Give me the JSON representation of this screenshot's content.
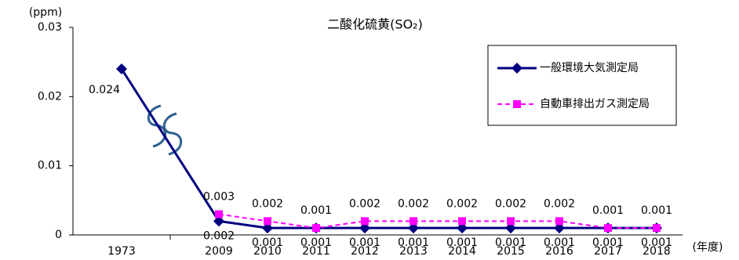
{
  "chart_data": {
    "type": "line",
    "title": "二酸化硫黄(SO₂)",
    "y_unit": "(ppm)",
    "x_unit": "(年度)",
    "categories": [
      "1973",
      "2009",
      "2010",
      "2011",
      "2012",
      "2013",
      "2014",
      "2015",
      "2016",
      "2017",
      "2018"
    ],
    "series": [
      {
        "name": "一般環境大気測定局",
        "color": "#000080",
        "marker": "diamond",
        "dash": false,
        "values": [
          0.024,
          0.002,
          0.001,
          0.001,
          0.001,
          0.001,
          0.001,
          0.001,
          0.001,
          0.001,
          0.001
        ]
      },
      {
        "name": "自動車排出ガス測定局",
        "color": "#ff00ff",
        "marker": "square",
        "dash": true,
        "values": [
          null,
          0.003,
          0.002,
          0.001,
          0.002,
          0.002,
          0.002,
          0.002,
          0.002,
          0.001,
          0.001
        ]
      }
    ],
    "ylim": [
      0,
      0.03
    ],
    "yticks": [
      0,
      0.01,
      0.02,
      0.03
    ],
    "legend": "upper right"
  }
}
